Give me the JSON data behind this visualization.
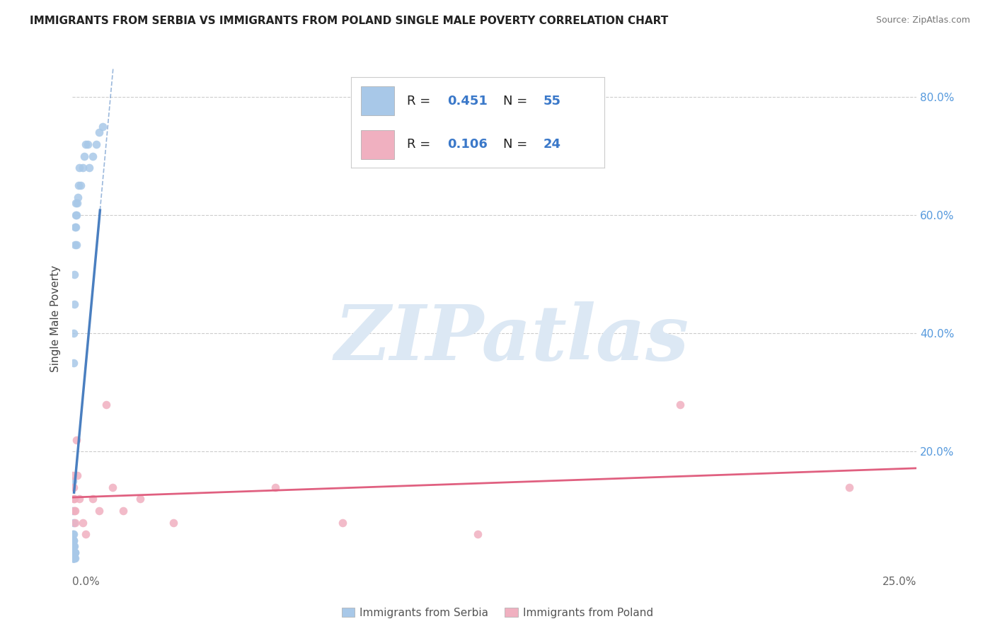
{
  "title": "IMMIGRANTS FROM SERBIA VS IMMIGRANTS FROM POLAND SINGLE MALE POVERTY CORRELATION CHART",
  "source": "Source: ZipAtlas.com",
  "ylabel": "Single Male Poverty",
  "serbia_R": 0.451,
  "serbia_N": 55,
  "poland_R": 0.106,
  "poland_N": 24,
  "serbia_color": "#a8c8e8",
  "serbia_line_color": "#4a7fc0",
  "poland_color": "#f0b0c0",
  "poland_line_color": "#e06080",
  "serbia_x": [
    0.0002,
    0.0002,
    0.0002,
    0.0002,
    0.0002,
    0.0002,
    0.0002,
    0.0002,
    0.0002,
    0.0002,
    0.0003,
    0.0003,
    0.0003,
    0.0003,
    0.0003,
    0.0003,
    0.0003,
    0.0003,
    0.0004,
    0.0004,
    0.0004,
    0.0004,
    0.0004,
    0.0004,
    0.0005,
    0.0005,
    0.0005,
    0.0005,
    0.0006,
    0.0006,
    0.0006,
    0.0007,
    0.0007,
    0.0007,
    0.0008,
    0.0008,
    0.0009,
    0.001,
    0.0011,
    0.0012,
    0.0013,
    0.0015,
    0.0016,
    0.0018,
    0.002,
    0.0025,
    0.003,
    0.0035,
    0.004,
    0.0045,
    0.005,
    0.006,
    0.007,
    0.008,
    0.009
  ],
  "serbia_y": [
    0.02,
    0.02,
    0.02,
    0.03,
    0.03,
    0.04,
    0.05,
    0.06,
    0.1,
    0.15,
    0.02,
    0.02,
    0.03,
    0.03,
    0.04,
    0.05,
    0.06,
    0.08,
    0.02,
    0.03,
    0.04,
    0.05,
    0.35,
    0.4,
    0.02,
    0.03,
    0.04,
    0.45,
    0.02,
    0.03,
    0.5,
    0.02,
    0.03,
    0.55,
    0.03,
    0.58,
    0.6,
    0.62,
    0.58,
    0.55,
    0.6,
    0.62,
    0.63,
    0.65,
    0.68,
    0.65,
    0.68,
    0.7,
    0.72,
    0.72,
    0.68,
    0.7,
    0.72,
    0.74,
    0.75
  ],
  "poland_x": [
    0.0002,
    0.0003,
    0.0004,
    0.0005,
    0.0006,
    0.0007,
    0.0008,
    0.0012,
    0.0015,
    0.002,
    0.003,
    0.004,
    0.006,
    0.008,
    0.01,
    0.012,
    0.015,
    0.02,
    0.03,
    0.06,
    0.08,
    0.12,
    0.18,
    0.23
  ],
  "poland_y": [
    0.16,
    0.12,
    0.14,
    0.1,
    0.12,
    0.08,
    0.1,
    0.22,
    0.16,
    0.12,
    0.08,
    0.06,
    0.12,
    0.1,
    0.28,
    0.14,
    0.1,
    0.12,
    0.08,
    0.14,
    0.08,
    0.06,
    0.28,
    0.14
  ],
  "xlim": [
    0.0,
    0.25
  ],
  "ylim": [
    0.0,
    0.85
  ],
  "background_color": "#ffffff",
  "grid_color": "#cccccc",
  "watermark_color": "#dce8f4",
  "right_yticks": [
    0.2,
    0.4,
    0.6,
    0.8
  ],
  "right_yticklabels": [
    "20.0%",
    "40.0%",
    "60.0%",
    "80.0%"
  ],
  "right_label_color": "#5599dd"
}
